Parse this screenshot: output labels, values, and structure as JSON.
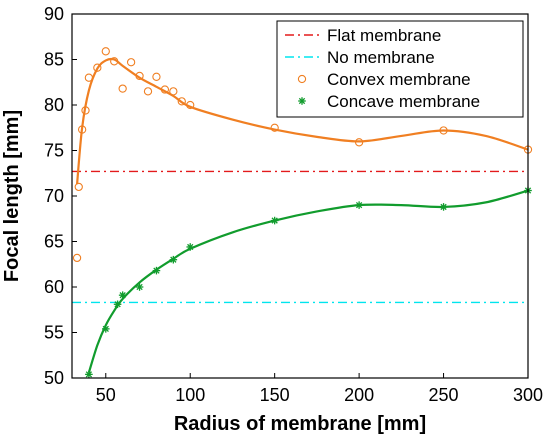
{
  "chart_data": {
    "type": "line",
    "xlabel": "Radius of membrane [mm]",
    "ylabel": "Focal length [mm]",
    "xlim": [
      30,
      300
    ],
    "ylim": [
      50,
      90
    ],
    "xticks": [
      50,
      100,
      150,
      200,
      250,
      300
    ],
    "yticks": [
      50,
      55,
      60,
      65,
      70,
      75,
      80,
      85,
      90
    ],
    "grid": false,
    "legend_position": "top-right",
    "series": [
      {
        "name": "Flat membrane",
        "kind": "hline",
        "y": 72.7,
        "color": "#e31a1c",
        "line_style": "dash-dot"
      },
      {
        "name": "No membrane",
        "kind": "hline",
        "y": 58.3,
        "color": "#00e5ee",
        "line_style": "dash-dot"
      },
      {
        "name": "Convex membrane",
        "kind": "points",
        "marker": "circle",
        "color": "#f07f22",
        "x": [
          33,
          34,
          36,
          38,
          40,
          45,
          50,
          55,
          60,
          65,
          70,
          75,
          80,
          85,
          90,
          95,
          100,
          150,
          200,
          250,
          300
        ],
        "y": [
          63.2,
          71.0,
          77.3,
          79.4,
          83.0,
          84.1,
          85.9,
          84.8,
          81.8,
          84.7,
          83.2,
          81.5,
          83.1,
          81.7,
          81.5,
          80.4,
          80.0,
          77.5,
          75.9,
          77.2,
          75.1
        ],
        "fit": {
          "color": "#f07f22",
          "x": [
            33,
            36,
            40,
            45,
            50,
            55,
            60,
            70,
            80,
            90,
            100,
            125,
            150,
            175,
            200,
            225,
            250,
            275,
            300
          ],
          "y": [
            71.3,
            77.5,
            81.6,
            84.0,
            84.9,
            85.0,
            84.3,
            83.0,
            82.0,
            81.0,
            79.8,
            78.4,
            77.3,
            76.5,
            76.0,
            76.6,
            77.2,
            76.6,
            75.1
          ]
        }
      },
      {
        "name": "Concave membrane",
        "kind": "points",
        "marker": "asterisk",
        "color": "#119c2d",
        "x": [
          40,
          50,
          57,
          60,
          70,
          80,
          90,
          100,
          150,
          200,
          250,
          300
        ],
        "y": [
          50.4,
          55.4,
          58.1,
          59.1,
          60.0,
          61.8,
          63.0,
          64.4,
          67.3,
          69.0,
          68.8,
          70.6
        ],
        "fit": {
          "color": "#119c2d",
          "x": [
            40,
            45,
            50,
            55,
            60,
            70,
            80,
            90,
            100,
            125,
            150,
            175,
            200,
            225,
            250,
            275,
            300
          ],
          "y": [
            50.6,
            53.6,
            55.8,
            57.4,
            58.7,
            60.5,
            61.9,
            63.1,
            64.2,
            66.0,
            67.3,
            68.3,
            69.0,
            69.0,
            68.8,
            69.3,
            70.6
          ]
        }
      }
    ]
  }
}
